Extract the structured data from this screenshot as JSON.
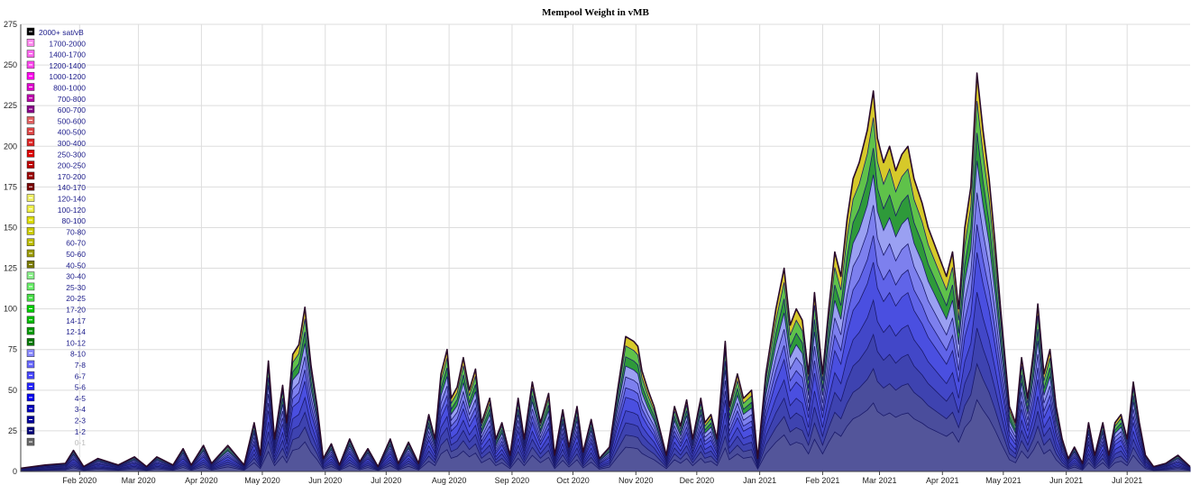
{
  "chart_data": {
    "type": "area",
    "title": "Mempool Weight in vMB",
    "xlabel": "",
    "ylabel": "",
    "ylim": [
      0,
      275
    ],
    "y_ticks": [
      0,
      25,
      50,
      75,
      100,
      125,
      150,
      175,
      200,
      225,
      250,
      275
    ],
    "x_range": [
      "2020-01-03",
      "2021-08-01"
    ],
    "x_ticks": [
      {
        "label": "Feb 2020",
        "date": "2020-02-01"
      },
      {
        "label": "Mar 2020",
        "date": "2020-03-01"
      },
      {
        "label": "Apr 2020",
        "date": "2020-04-01"
      },
      {
        "label": "May 2020",
        "date": "2020-05-01"
      },
      {
        "label": "Jun 2020",
        "date": "2020-06-01"
      },
      {
        "label": "Jul 2020",
        "date": "2020-07-01"
      },
      {
        "label": "Aug 2020",
        "date": "2020-08-01"
      },
      {
        "label": "Sep 2020",
        "date": "2020-09-01"
      },
      {
        "label": "Oct 2020",
        "date": "2020-10-01"
      },
      {
        "label": "Nov 2020",
        "date": "2020-11-01"
      },
      {
        "label": "Dec 2020",
        "date": "2020-12-01"
      },
      {
        "label": "Jan 2021",
        "date": "2021-01-01"
      },
      {
        "label": "Feb 2021",
        "date": "2021-02-01"
      },
      {
        "label": "Mar 2021",
        "date": "2021-03-01"
      },
      {
        "label": "Apr 2021",
        "date": "2021-04-01"
      },
      {
        "label": "May 2021",
        "date": "2021-05-01"
      },
      {
        "label": "Jun 2021",
        "date": "2021-06-01"
      },
      {
        "label": "Jul 2021",
        "date": "2021-07-01"
      }
    ],
    "grid": true,
    "legend_position": "top-left",
    "legend": [
      {
        "label": "2000+ sat/vB",
        "color": "#000000"
      },
      {
        "label": "1700-2000",
        "color": "#ff88ee"
      },
      {
        "label": "1400-1700",
        "color": "#ff66ee"
      },
      {
        "label": "1200-1400",
        "color": "#ff44ee"
      },
      {
        "label": "1000-1200",
        "color": "#ff00ee"
      },
      {
        "label": "800-1000",
        "color": "#dd00cc"
      },
      {
        "label": "700-800",
        "color": "#bb00aa"
      },
      {
        "label": "600-700",
        "color": "#880088"
      },
      {
        "label": "500-600",
        "color": "#e06060"
      },
      {
        "label": "400-500",
        "color": "#dd4444"
      },
      {
        "label": "300-400",
        "color": "#dd2222"
      },
      {
        "label": "250-300",
        "color": "#dd0000"
      },
      {
        "label": "200-250",
        "color": "#bb0000"
      },
      {
        "label": "170-200",
        "color": "#990000"
      },
      {
        "label": "140-170",
        "color": "#770000"
      },
      {
        "label": "120-140",
        "color": "#eeee66"
      },
      {
        "label": "100-120",
        "color": "#eeee44"
      },
      {
        "label": "80-100",
        "color": "#dddd00"
      },
      {
        "label": "70-80",
        "color": "#cccc00"
      },
      {
        "label": "60-70",
        "color": "#bbbb00"
      },
      {
        "label": "50-60",
        "color": "#999900"
      },
      {
        "label": "40-50",
        "color": "#777700"
      },
      {
        "label": "30-40",
        "color": "#88ee88"
      },
      {
        "label": "25-30",
        "color": "#66ee66"
      },
      {
        "label": "20-25",
        "color": "#44dd44"
      },
      {
        "label": "17-20",
        "color": "#00cc00"
      },
      {
        "label": "14-17",
        "color": "#00bb00"
      },
      {
        "label": "12-14",
        "color": "#009900"
      },
      {
        "label": "10-12",
        "color": "#007700"
      },
      {
        "label": "8-10",
        "color": "#8888ff"
      },
      {
        "label": "7-8",
        "color": "#6666ff"
      },
      {
        "label": "6-7",
        "color": "#4444ff"
      },
      {
        "label": "5-6",
        "color": "#2222ff"
      },
      {
        "label": "4-5",
        "color": "#0000ee"
      },
      {
        "label": "3-4",
        "color": "#0000bb"
      },
      {
        "label": "2-3",
        "color": "#000099"
      },
      {
        "label": "1-2",
        "color": "#000077"
      },
      {
        "label": "0-1",
        "color": "#666666"
      }
    ],
    "series_total_anchors": [
      [
        "2020-01-03",
        2
      ],
      [
        "2020-01-15",
        4
      ],
      [
        "2020-01-25",
        5
      ],
      [
        "2020-01-29",
        13
      ],
      [
        "2020-02-03",
        3
      ],
      [
        "2020-02-10",
        8
      ],
      [
        "2020-02-20",
        4
      ],
      [
        "2020-02-28",
        9
      ],
      [
        "2020-03-05",
        3
      ],
      [
        "2020-03-10",
        9
      ],
      [
        "2020-03-18",
        4
      ],
      [
        "2020-03-23",
        14
      ],
      [
        "2020-03-27",
        4
      ],
      [
        "2020-04-02",
        16
      ],
      [
        "2020-04-06",
        5
      ],
      [
        "2020-04-14",
        16
      ],
      [
        "2020-04-22",
        4
      ],
      [
        "2020-04-27",
        30
      ],
      [
        "2020-04-30",
        10
      ],
      [
        "2020-05-04",
        68
      ],
      [
        "2020-05-07",
        20
      ],
      [
        "2020-05-11",
        53
      ],
      [
        "2020-05-13",
        30
      ],
      [
        "2020-05-16",
        72
      ],
      [
        "2020-05-19",
        78
      ],
      [
        "2020-05-22",
        101
      ],
      [
        "2020-05-25",
        65
      ],
      [
        "2020-05-28",
        40
      ],
      [
        "2020-05-31",
        8
      ],
      [
        "2020-06-04",
        17
      ],
      [
        "2020-06-08",
        4
      ],
      [
        "2020-06-13",
        20
      ],
      [
        "2020-06-18",
        6
      ],
      [
        "2020-06-22",
        14
      ],
      [
        "2020-06-27",
        3
      ],
      [
        "2020-07-03",
        20
      ],
      [
        "2020-07-07",
        5
      ],
      [
        "2020-07-12",
        18
      ],
      [
        "2020-07-17",
        5
      ],
      [
        "2020-07-22",
        35
      ],
      [
        "2020-07-25",
        20
      ],
      [
        "2020-07-28",
        60
      ],
      [
        "2020-07-31",
        75
      ],
      [
        "2020-08-02",
        45
      ],
      [
        "2020-08-05",
        52
      ],
      [
        "2020-08-08",
        70
      ],
      [
        "2020-08-11",
        50
      ],
      [
        "2020-08-14",
        63
      ],
      [
        "2020-08-17",
        30
      ],
      [
        "2020-08-21",
        45
      ],
      [
        "2020-08-24",
        20
      ],
      [
        "2020-08-27",
        30
      ],
      [
        "2020-08-31",
        10
      ],
      [
        "2020-09-04",
        45
      ],
      [
        "2020-09-07",
        20
      ],
      [
        "2020-09-11",
        55
      ],
      [
        "2020-09-15",
        30
      ],
      [
        "2020-09-19",
        48
      ],
      [
        "2020-09-22",
        10
      ],
      [
        "2020-09-26",
        38
      ],
      [
        "2020-09-29",
        15
      ],
      [
        "2020-10-03",
        40
      ],
      [
        "2020-10-06",
        12
      ],
      [
        "2020-10-10",
        32
      ],
      [
        "2020-10-14",
        8
      ],
      [
        "2020-10-19",
        15
      ],
      [
        "2020-10-23",
        50
      ],
      [
        "2020-10-27",
        83
      ],
      [
        "2020-10-31",
        80
      ],
      [
        "2020-11-02",
        77
      ],
      [
        "2020-11-04",
        62
      ],
      [
        "2020-11-07",
        50
      ],
      [
        "2020-11-10",
        40
      ],
      [
        "2020-11-13",
        25
      ],
      [
        "2020-11-16",
        10
      ],
      [
        "2020-11-20",
        40
      ],
      [
        "2020-11-23",
        28
      ],
      [
        "2020-11-26",
        44
      ],
      [
        "2020-11-29",
        20
      ],
      [
        "2020-12-03",
        45
      ],
      [
        "2020-12-05",
        30
      ],
      [
        "2020-12-08",
        35
      ],
      [
        "2020-12-11",
        20
      ],
      [
        "2020-12-15",
        80
      ],
      [
        "2020-12-17",
        40
      ],
      [
        "2020-12-21",
        60
      ],
      [
        "2020-12-24",
        45
      ],
      [
        "2020-12-28",
        50
      ],
      [
        "2020-12-31",
        8
      ],
      [
        "2021-01-04",
        60
      ],
      [
        "2021-01-09",
        100
      ],
      [
        "2021-01-13",
        125
      ],
      [
        "2021-01-16",
        90
      ],
      [
        "2021-01-19",
        100
      ],
      [
        "2021-01-22",
        93
      ],
      [
        "2021-01-25",
        60
      ],
      [
        "2021-01-28",
        110
      ],
      [
        "2021-02-01",
        60
      ],
      [
        "2021-02-04",
        100
      ],
      [
        "2021-02-07",
        135
      ],
      [
        "2021-02-10",
        120
      ],
      [
        "2021-02-13",
        155
      ],
      [
        "2021-02-16",
        180
      ],
      [
        "2021-02-19",
        190
      ],
      [
        "2021-02-23",
        210
      ],
      [
        "2021-02-26",
        234
      ],
      [
        "2021-02-28",
        205
      ],
      [
        "2021-03-03",
        190
      ],
      [
        "2021-03-06",
        200
      ],
      [
        "2021-03-09",
        185
      ],
      [
        "2021-03-12",
        195
      ],
      [
        "2021-03-15",
        200
      ],
      [
        "2021-03-18",
        180
      ],
      [
        "2021-03-22",
        165
      ],
      [
        "2021-03-25",
        150
      ],
      [
        "2021-03-28",
        140
      ],
      [
        "2021-03-31",
        130
      ],
      [
        "2021-04-03",
        120
      ],
      [
        "2021-04-06",
        135
      ],
      [
        "2021-04-09",
        100
      ],
      [
        "2021-04-12",
        150
      ],
      [
        "2021-04-15",
        175
      ],
      [
        "2021-04-18",
        245
      ],
      [
        "2021-04-21",
        210
      ],
      [
        "2021-04-24",
        180
      ],
      [
        "2021-04-27",
        140
      ],
      [
        "2021-04-30",
        95
      ],
      [
        "2021-05-04",
        40
      ],
      [
        "2021-05-07",
        30
      ],
      [
        "2021-05-10",
        70
      ],
      [
        "2021-05-13",
        45
      ],
      [
        "2021-05-16",
        75
      ],
      [
        "2021-05-18",
        103
      ],
      [
        "2021-05-21",
        60
      ],
      [
        "2021-05-24",
        75
      ],
      [
        "2021-05-27",
        40
      ],
      [
        "2021-05-30",
        20
      ],
      [
        "2021-06-02",
        8
      ],
      [
        "2021-06-05",
        15
      ],
      [
        "2021-06-09",
        5
      ],
      [
        "2021-06-12",
        30
      ],
      [
        "2021-06-15",
        10
      ],
      [
        "2021-06-19",
        30
      ],
      [
        "2021-06-22",
        10
      ],
      [
        "2021-06-25",
        30
      ],
      [
        "2021-06-28",
        35
      ],
      [
        "2021-07-01",
        20
      ],
      [
        "2021-07-04",
        55
      ],
      [
        "2021-07-07",
        30
      ],
      [
        "2021-07-10",
        10
      ],
      [
        "2021-07-14",
        3
      ],
      [
        "2021-07-20",
        5
      ],
      [
        "2021-07-26",
        10
      ],
      [
        "2021-08-01",
        3
      ]
    ]
  }
}
